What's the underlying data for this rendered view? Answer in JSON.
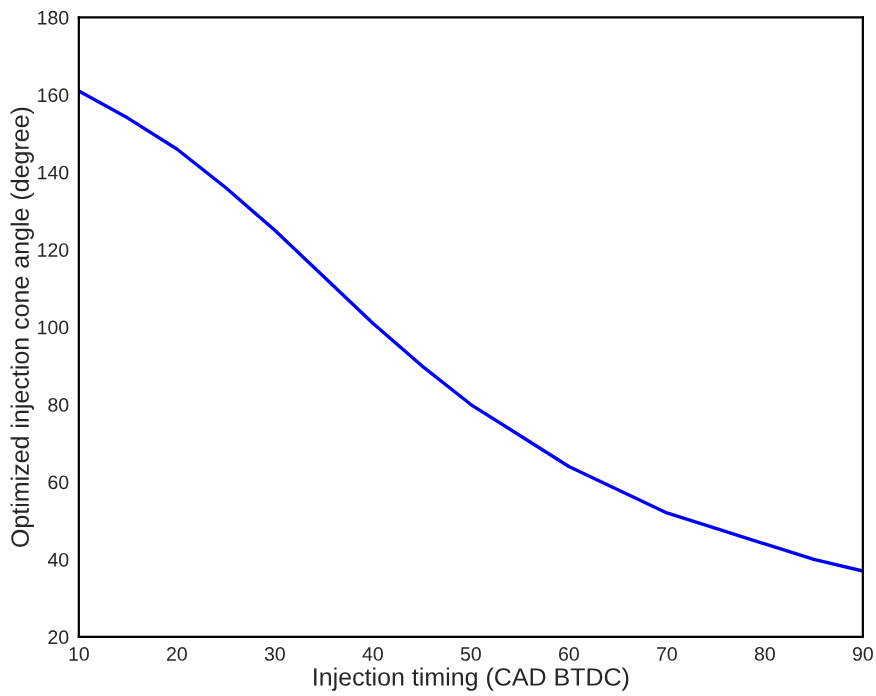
{
  "chart_data": {
    "type": "line",
    "xlabel": "Injection timing (CAD BTDC)",
    "ylabel": "Optimized injection cone angle (degree)",
    "x": [
      10,
      15,
      20,
      25,
      30,
      35,
      40,
      45,
      50,
      55,
      60,
      65,
      70,
      75,
      80,
      85,
      90
    ],
    "series": [
      {
        "color": "#0000ff",
        "values": [
          161,
          154,
          146,
          136,
          125,
          113,
          101,
          90,
          80,
          72,
          64,
          58,
          52,
          48,
          44,
          40,
          37
        ]
      }
    ],
    "xlim": [
      10,
      90
    ],
    "xticks": [
      10,
      20,
      30,
      40,
      50,
      60,
      70,
      80,
      90
    ],
    "ylim": [
      20,
      180
    ],
    "yticks": [
      20,
      40,
      60,
      80,
      100,
      120,
      140,
      160,
      180
    ],
    "grid": false,
    "legend": false,
    "marker": "none",
    "line_style": "solid"
  }
}
